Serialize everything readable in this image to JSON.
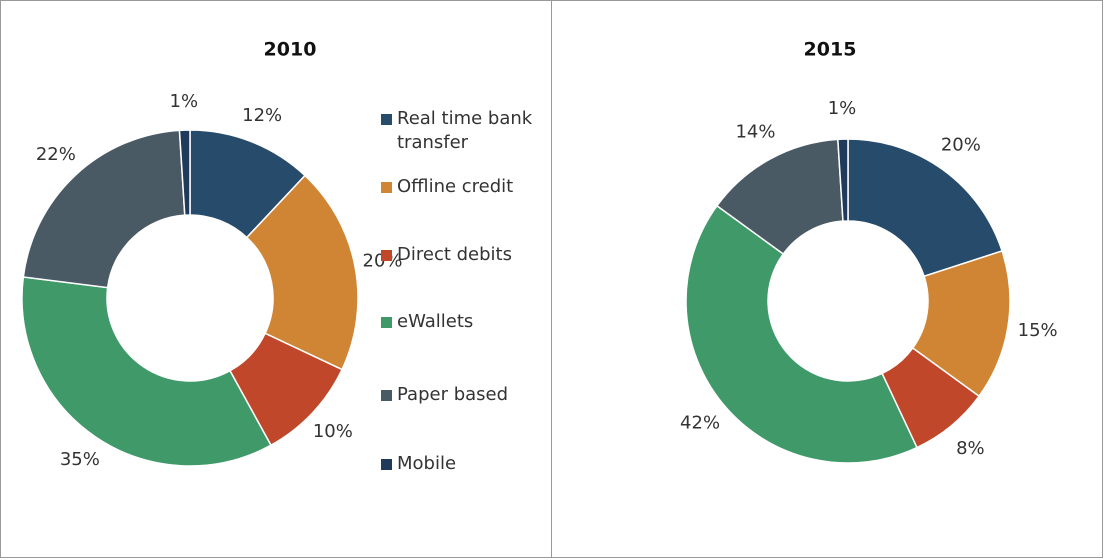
{
  "chart_data": [
    {
      "type": "donut",
      "title": "2010",
      "categories": [
        "Real time bank transfer",
        "Offline credit",
        "Direct debits",
        "eWallets",
        "Paper based",
        "Mobile"
      ],
      "values": [
        12,
        20,
        10,
        35,
        22,
        1
      ],
      "value_labels": [
        "12%",
        "20%",
        "10%",
        "35%",
        "22%",
        "1%"
      ],
      "colors": [
        "#264b6b",
        "#d08535",
        "#c0472a",
        "#3f9968",
        "#4a5a64",
        "#1f3a5a"
      ],
      "legend": "right"
    },
    {
      "type": "donut",
      "title": "2015",
      "values": [
        20,
        15,
        8,
        42,
        14,
        1
      ],
      "value_labels": [
        "20%",
        "15%",
        "8%",
        "42%",
        "14%",
        "1%"
      ],
      "colors": [
        "#264b6b",
        "#d08535",
        "#c0472a",
        "#3f9968",
        "#4a5a64",
        "#1f3a5a"
      ]
    }
  ]
}
